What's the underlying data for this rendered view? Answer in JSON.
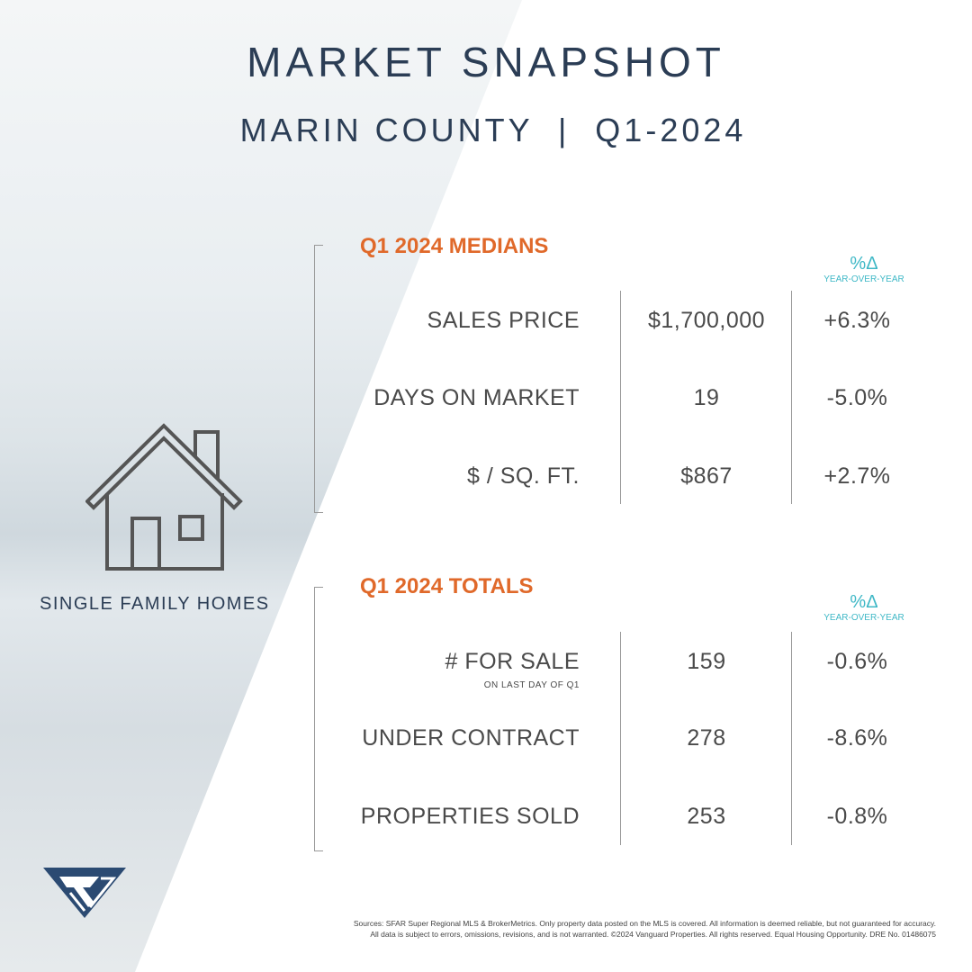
{
  "title": "MARKET SNAPSHOT",
  "subtitle": "MARIN COUNTY  |  Q1-2024",
  "property_type": "SINGLE FAMILY HOMES",
  "colors": {
    "navy": "#2b3d55",
    "orange": "#e0692a",
    "teal": "#3fb8c6"
  },
  "medians": {
    "heading": "Q1 2024 MEDIANS",
    "delta": "%Δ",
    "delta_sub": "YEAR-OVER-YEAR",
    "rows": [
      {
        "label": "SALES PRICE",
        "value": "$1,700,000",
        "change": "+6.3%"
      },
      {
        "label": "DAYS ON MARKET",
        "value": "19",
        "change": "-5.0%"
      },
      {
        "label": "$ / SQ. FT.",
        "value": "$867",
        "change": "+2.7%"
      }
    ]
  },
  "totals": {
    "heading": "Q1 2024 TOTALS",
    "delta": "%Δ",
    "delta_sub": "YEAR-OVER-YEAR",
    "rows": [
      {
        "label": "# FOR SALE",
        "note": "ON LAST DAY OF Q1",
        "value": "159",
        "change": "-0.6%"
      },
      {
        "label": "UNDER CONTRACT",
        "value": "278",
        "change": "-8.6%"
      },
      {
        "label": "PROPERTIES SOLD",
        "value": "253",
        "change": "-0.8%"
      }
    ]
  },
  "footer": {
    "line1": "Sources: SFAR Super Regional MLS & BrokerMetrics. Only property data posted on the MLS is covered. All information is deemed reliable, but not guaranteed for accuracy.",
    "line2": "All data is subject to errors, omissions, revisions, and is not warranted. ©2024 Vanguard Properties. All rights reserved. Equal Housing Opportunity. DRE No. 01486075"
  },
  "logo": "Vanguard Properties"
}
